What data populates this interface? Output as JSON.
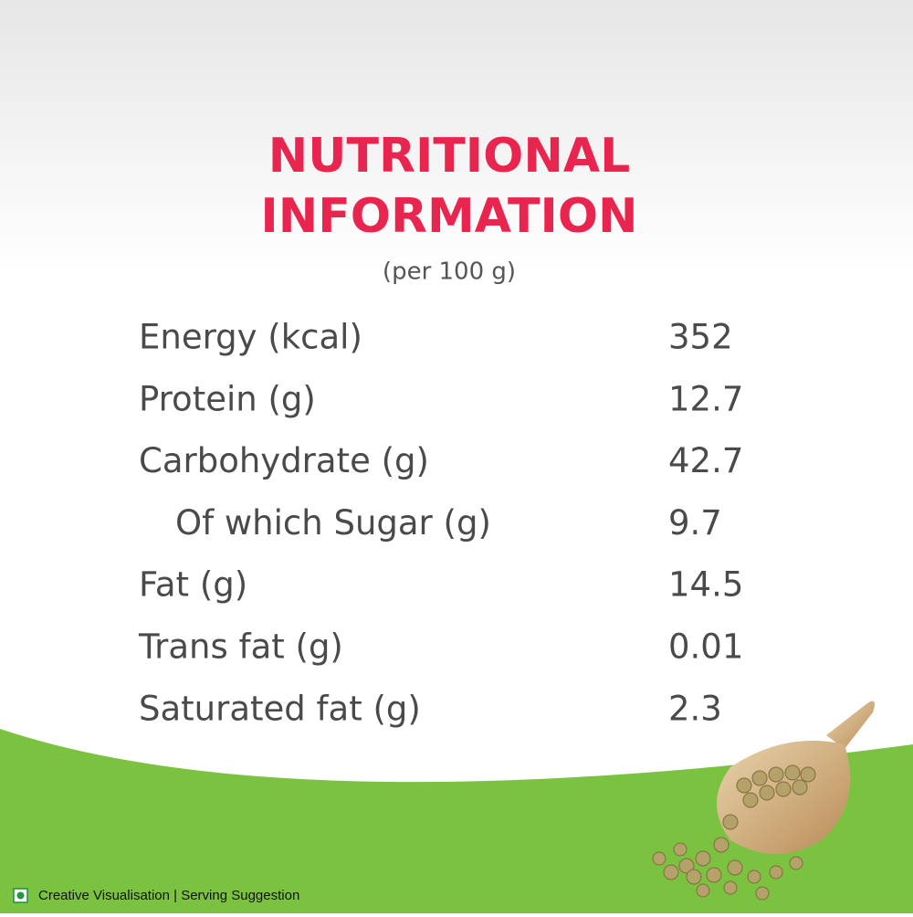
{
  "header": {
    "title": [
      "NUTRITIONAL",
      "INFORMATION"
    ],
    "subtitle": "(per 100 g)"
  },
  "table": {
    "rows": [
      [
        "Energy (kcal)",
        "352"
      ],
      [
        "Protein (g)",
        "12.7"
      ],
      [
        "Carbohydrate (g)",
        "42.7"
      ],
      [
        "Of which Sugar (g)",
        "9.7"
      ],
      [
        "Fat (g)",
        "14.5"
      ],
      [
        "Trans fat (g)",
        "0.01"
      ],
      [
        "Saturated fat (g)",
        "2.3"
      ]
    ]
  },
  "footer": {
    "note": "Creative Visualisation | Serving Suggestion"
  }
}
